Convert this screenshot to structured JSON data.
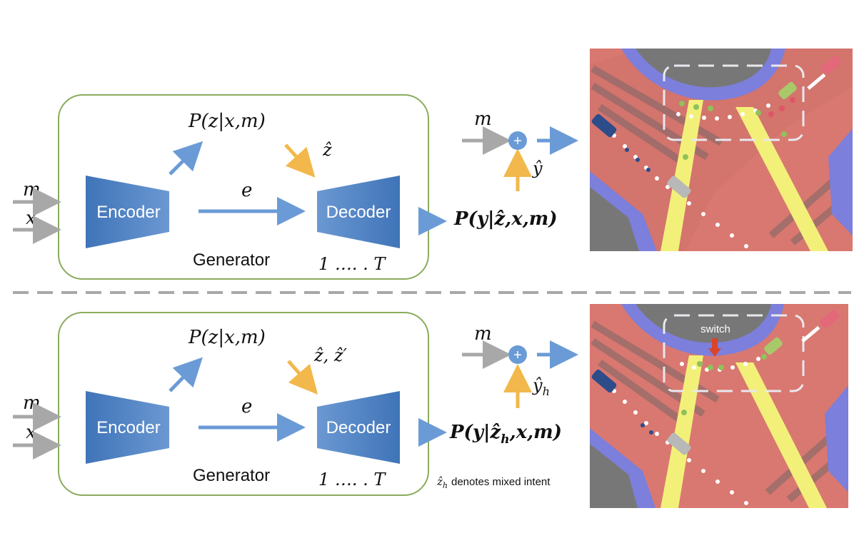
{
  "top": {
    "input_m": "m",
    "input_x": "x",
    "encoder_label": "Encoder",
    "decoder_label": "Decoder",
    "latent_edge": "e",
    "prior_label": "P(z|x,m)",
    "sample_label": "ẑ",
    "generator_label": "Generator",
    "steps_label": "1 …. . T",
    "output_label": "P(y|ẑ,x,m)",
    "sum_input_m": "m",
    "yhat_label": "ŷ"
  },
  "bottom": {
    "input_m": "m",
    "input_x": "x",
    "encoder_label": "Encoder",
    "decoder_label": "Decoder",
    "latent_edge": "e",
    "prior_label": "P(z|x,m)",
    "sample_label": "ẑ, ẑ′",
    "generator_label": "Generator",
    "steps_label": "1 …. . T",
    "output_label": "P(y|ẑ",
    "output_label_sub": "h",
    "output_label_tail": ",x,m)",
    "sum_input_m": "m",
    "yhat_label": "ŷ",
    "yhat_sub": "h",
    "note_symbol": "ẑ",
    "note_sub": "h",
    "note_text": "denotes mixed intent",
    "switch_label": "switch"
  },
  "colors": {
    "frame_green": "#8aab5c",
    "block_blue": "#4a7fc1",
    "arrow_blue": "#6b9bd6",
    "arrow_orange": "#f2b84b",
    "arrow_gray": "#a8a8a8",
    "map_red": "#d97870",
    "map_lane_yellow": "#f3f07a",
    "map_lane_purple": "#7c7fdb",
    "map_gray": "#777777",
    "switch_arrow": "#d9442b"
  }
}
